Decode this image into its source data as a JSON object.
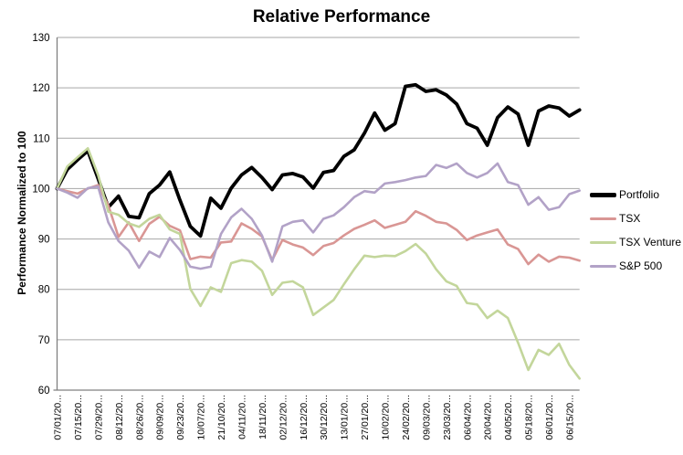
{
  "chart_data": {
    "type": "line",
    "title": "Relative Performance",
    "xlabel": "",
    "ylabel": "Performance Normalized to 100",
    "ylim": [
      60,
      130
    ],
    "yticks": [
      60,
      70,
      80,
      90,
      100,
      110,
      120,
      130
    ],
    "grid": true,
    "legend_position": "right",
    "x_points_per_label": 2,
    "x_tick_labels": [
      "07/01/20...",
      "07/15/20...",
      "07/29/20...",
      "08/12/20...",
      "08/26/20...",
      "09/09/20...",
      "09/23/20...",
      "10/07/20...",
      "21/10/20...",
      "04/11/20...",
      "18/11/20...",
      "02/12/20...",
      "16/12/20...",
      "30/12/20...",
      "13/01/20...",
      "27/01/20...",
      "10/02/20...",
      "24/02/20...",
      "09/03/20...",
      "23/03/20...",
      "06/04/20...",
      "20/04/20...",
      "04/05/20...",
      "05/18/20...",
      "06/01/20...",
      "06/15/20..."
    ],
    "colors": {
      "gridline": "#A6A6A6",
      "axis": "#808080",
      "background": "#FFFFFF",
      "text": "#000000"
    },
    "series": [
      {
        "id": "portfolio",
        "name": "Portfolio",
        "color": "#000000",
        "values": [
          100,
          103.8,
          105.7,
          107.5,
          102.0,
          96.3,
          98.5,
          94.5,
          94.2,
          99.0,
          100.7,
          103.3,
          97.7,
          92.5,
          90.6,
          98.1,
          96.1,
          100.1,
          102.7,
          104.2,
          102.2,
          99.8,
          102.7,
          103.0,
          102.3,
          100.1,
          103.2,
          103.6,
          106.4,
          107.7,
          111.0,
          115.0,
          111.6,
          112.9,
          120.3,
          120.6,
          119.3,
          119.6,
          118.6,
          116.8,
          112.9,
          112.0,
          108.6,
          114.1,
          116.2,
          114.8,
          108.6,
          115.4,
          116.4,
          116.0,
          114.4,
          115.6
        ]
      },
      {
        "id": "tsx",
        "name": "TSX",
        "color": "#D99694",
        "values": [
          100,
          99.5,
          99.0,
          100.0,
          100.7,
          96.7,
          90.4,
          93.3,
          89.6,
          93.0,
          94.4,
          92.6,
          91.7,
          86.0,
          86.5,
          86.3,
          89.3,
          89.5,
          93.1,
          92.0,
          90.5,
          85.8,
          89.8,
          88.9,
          88.3,
          86.8,
          88.6,
          89.2,
          90.7,
          92.0,
          92.8,
          93.7,
          92.2,
          92.8,
          93.4,
          95.5,
          94.6,
          93.4,
          93.1,
          91.8,
          89.8,
          90.7,
          91.3,
          91.9,
          88.9,
          88.0,
          85.0,
          86.9,
          85.5,
          86.5,
          86.3,
          85.7
        ]
      },
      {
        "id": "tsx-venture",
        "name": "TSX Venture",
        "color": "#C3D69B",
        "values": [
          100,
          104.4,
          106.2,
          108.0,
          102.7,
          95.4,
          94.8,
          93.1,
          92.4,
          94.0,
          94.8,
          91.9,
          91.0,
          80.1,
          76.7,
          80.4,
          79.5,
          85.2,
          85.8,
          85.5,
          83.7,
          78.9,
          81.3,
          81.6,
          80.4,
          74.9,
          76.4,
          77.9,
          81.0,
          84.0,
          86.7,
          86.4,
          86.7,
          86.6,
          87.6,
          89.0,
          87.1,
          84.0,
          81.6,
          80.7,
          77.3,
          77.0,
          74.3,
          75.8,
          74.3,
          69.4,
          64.0,
          68.0,
          67.0,
          69.2,
          65.0,
          62.3
        ]
      },
      {
        "id": "sp-500",
        "name": "S&P 500",
        "color": "#B2A2C7",
        "values": [
          100,
          99.2,
          98.2,
          100.1,
          100.4,
          93.3,
          89.6,
          87.7,
          84.3,
          87.5,
          86.4,
          90.2,
          87.8,
          84.5,
          84.1,
          84.5,
          91.0,
          94.3,
          96.0,
          94.0,
          90.7,
          85.5,
          92.5,
          93.4,
          93.7,
          91.3,
          94.0,
          94.7,
          96.3,
          98.3,
          99.5,
          99.2,
          101.0,
          101.3,
          101.7,
          102.2,
          102.5,
          104.7,
          104.1,
          105.0,
          103.1,
          102.2,
          103.1,
          105.0,
          101.3,
          100.7,
          96.8,
          98.3,
          95.8,
          96.3,
          98.9,
          99.6
        ]
      }
    ]
  }
}
